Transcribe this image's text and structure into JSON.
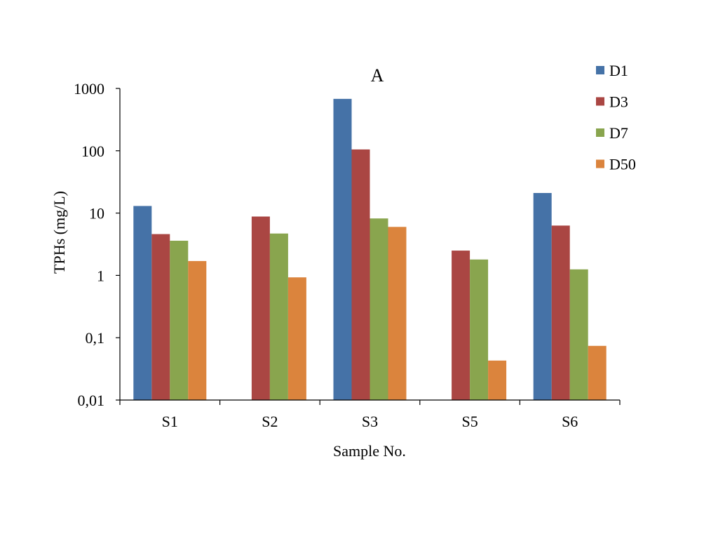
{
  "chart_data": {
    "type": "bar",
    "title": "A",
    "xlabel": "Sample No.",
    "ylabel": "TPHs (mg/L)",
    "yscale": "log",
    "ylim": [
      0.01,
      1000
    ],
    "yticks": [
      "0,01",
      "0,1",
      "1",
      "10",
      "100",
      "1000"
    ],
    "categories": [
      "S1",
      "S2",
      "S3",
      "S5",
      "S6"
    ],
    "series": [
      {
        "name": "D1",
        "color": "#4572A7",
        "values": [
          13,
          null,
          680,
          null,
          21
        ]
      },
      {
        "name": "D3",
        "color": "#AA4643",
        "values": [
          4.6,
          8.8,
          105,
          2.5,
          6.3
        ]
      },
      {
        "name": "D7",
        "color": "#89A54E",
        "values": [
          3.6,
          4.7,
          8.2,
          1.8,
          1.25
        ]
      },
      {
        "name": "D50",
        "color": "#DB843D",
        "values": [
          1.7,
          0.93,
          6.0,
          0.043,
          0.074
        ]
      }
    ],
    "grid": false,
    "legend": "top-right"
  }
}
